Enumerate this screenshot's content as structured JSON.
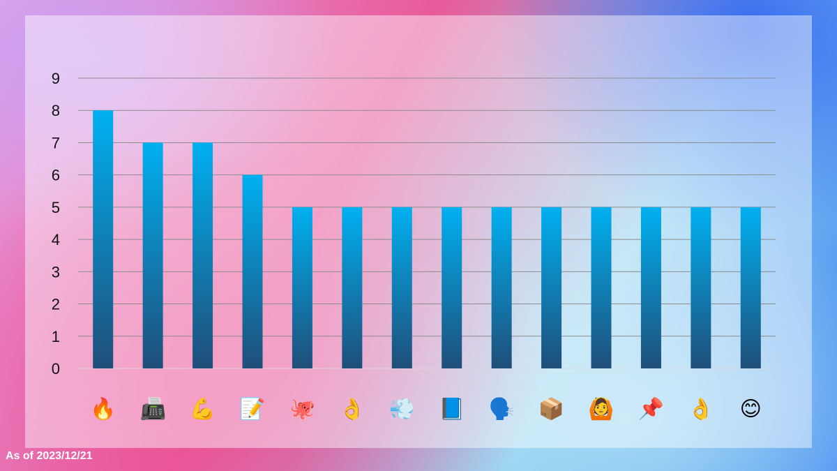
{
  "footer": {
    "note": "As of 2023/12/21"
  },
  "chart_data": {
    "type": "bar",
    "categories": [
      "🔥",
      "📠",
      "💪",
      "📝",
      "🐙",
      "👌",
      "💨",
      "📘",
      "🗣️",
      "📦",
      "🙆",
      "📌",
      "👌",
      "😊"
    ],
    "values": [
      8,
      7,
      7,
      6,
      5,
      5,
      5,
      5,
      5,
      5,
      5,
      5,
      5,
      5
    ],
    "yticks": [
      0,
      1,
      2,
      3,
      4,
      5,
      6,
      7,
      8,
      9
    ],
    "ylim": [
      0,
      9
    ],
    "grid": true,
    "bar_color_top": "#00b0f0",
    "bar_color_bottom": "#1f4e79",
    "title": "",
    "xlabel": "",
    "ylabel": ""
  }
}
